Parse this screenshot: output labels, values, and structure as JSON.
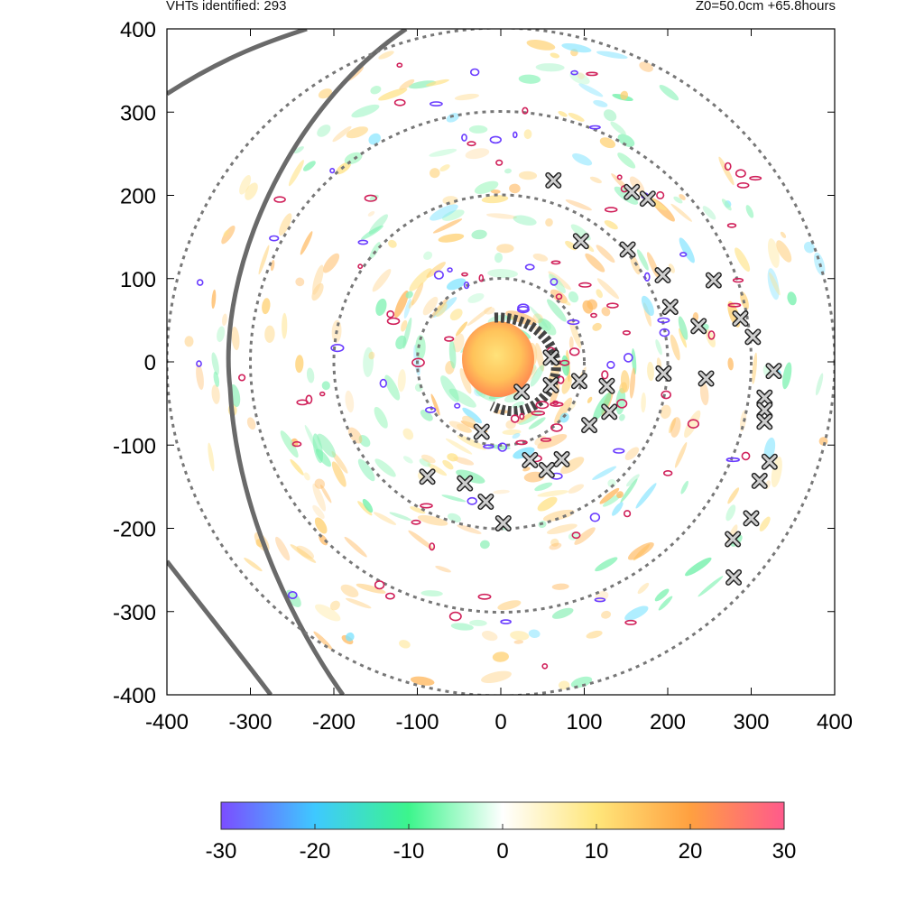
{
  "header": {
    "vht_count_label": "VHTs identified: 293",
    "level_time_label": "Z0=50.0cm  +65.8hours"
  },
  "colors": {
    "ring": "#777777",
    "track": "#6a6a6a",
    "contour_pos": "#d0205a",
    "contour_neg": "#6a3cff",
    "marker_fill": "#cfcfcf",
    "marker_stroke": "#222222"
  },
  "chart_data": {
    "type": "scatter",
    "title": "",
    "xlabel": "",
    "ylabel": "",
    "xlim": [
      -400,
      400
    ],
    "ylim": [
      -400,
      400
    ],
    "xticks": [
      "-400",
      "-300",
      "-200",
      "-100",
      "0",
      "100",
      "200",
      "300",
      "400"
    ],
    "yticks": [
      "400",
      "300",
      "200",
      "100",
      "0",
      "-100",
      "-200",
      "-300",
      "-400"
    ],
    "range_rings_radius": [
      100,
      200,
      300,
      400
    ],
    "grid": false,
    "vht_markers": [
      [
        63,
        218
      ],
      [
        96,
        145
      ],
      [
        157,
        204
      ],
      [
        176,
        196
      ],
      [
        152,
        135
      ],
      [
        194,
        104
      ],
      [
        255,
        98
      ],
      [
        203,
        66
      ],
      [
        237,
        43
      ],
      [
        287,
        52
      ],
      [
        302,
        30
      ],
      [
        195,
        -14
      ],
      [
        246,
        -20
      ],
      [
        327,
        -11
      ],
      [
        316,
        -43
      ],
      [
        316,
        -58
      ],
      [
        316,
        -72
      ],
      [
        94,
        -23
      ],
      [
        127,
        -29
      ],
      [
        130,
        -60
      ],
      [
        106,
        -76
      ],
      [
        73,
        -117
      ],
      [
        55,
        -130
      ],
      [
        35,
        -118
      ],
      [
        -43,
        -146
      ],
      [
        -88,
        -138
      ],
      [
        -18,
        -168
      ],
      [
        3,
        -194
      ],
      [
        322,
        -120
      ],
      [
        310,
        -143
      ],
      [
        300,
        -188
      ],
      [
        278,
        -213
      ],
      [
        279,
        -259
      ],
      [
        -23,
        -84
      ],
      [
        60,
        5
      ],
      [
        60,
        -28
      ],
      [
        25,
        -36
      ]
    ],
    "colorbar": {
      "ticks": [
        "-30",
        "-20",
        "-10",
        "0",
        "10",
        "20",
        "30"
      ],
      "range": [
        -30,
        30
      ],
      "colors": [
        "#7b4dff",
        "#3ec9ff",
        "#3cf58c",
        "#ffffff",
        "#ffe67a",
        "#ffa040",
        "#ff5a8c"
      ]
    }
  }
}
